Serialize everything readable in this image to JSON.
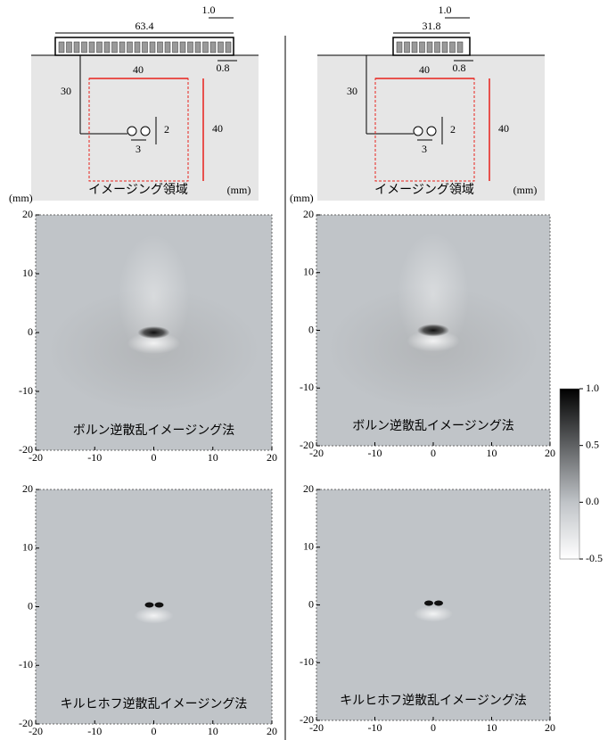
{
  "schematics": [
    {
      "array_width": "63.4",
      "element_width": "1.0",
      "gap": "0.8",
      "depth": "30",
      "region_width": "40",
      "region_height": "40",
      "separation_v": "2",
      "separation_h": "3",
      "region_label": "イメージング領域",
      "unit": "(mm)"
    },
    {
      "array_width": "31.8",
      "element_width": "1.0",
      "gap": "0.8",
      "depth": "30",
      "region_width": "40",
      "region_height": "40",
      "separation_v": "2",
      "separation_h": "3",
      "region_label": "イメージング領域",
      "unit": "(mm)"
    }
  ],
  "panels": [
    {
      "unit": "(mm)",
      "label": "ボルン逆散乱イメージング法",
      "xlim": [
        -20,
        20
      ],
      "ylim": [
        -20,
        20
      ],
      "xticks": [
        -20,
        -10,
        0,
        10,
        20
      ],
      "yticks": [
        -20,
        -10,
        0,
        10,
        20
      ]
    },
    {
      "unit": "(mm)",
      "label": "ボルン逆散乱イメージング法",
      "xlim": [
        -20,
        20
      ],
      "ylim": [
        -20,
        20
      ],
      "xticks": [
        -20,
        -10,
        0,
        10,
        20
      ],
      "yticks": [
        -20,
        -10,
        0,
        10,
        20
      ]
    },
    {
      "label": "キルヒホフ逆散乱イメージング法",
      "xlim": [
        -20,
        20
      ],
      "ylim": [
        -20,
        20
      ],
      "xticks": [
        -20,
        -10,
        0,
        10,
        20
      ],
      "yticks": [
        -20,
        -10,
        0,
        10,
        20
      ]
    },
    {
      "label": "キルヒホフ逆散乱イメージング法",
      "xlim": [
        -20,
        20
      ],
      "ylim": [
        -20,
        20
      ],
      "xticks": [
        -20,
        -10,
        0,
        10,
        20
      ],
      "yticks": [
        -20,
        -10,
        0,
        10,
        20
      ]
    }
  ],
  "colorbar": {
    "lim": [
      -0.5,
      1.0
    ],
    "ticks": [
      {
        "value": 1,
        "label": "1.0"
      },
      0.5,
      {
        "value": 0,
        "label": "0.0"
      },
      -0.5
    ]
  }
}
